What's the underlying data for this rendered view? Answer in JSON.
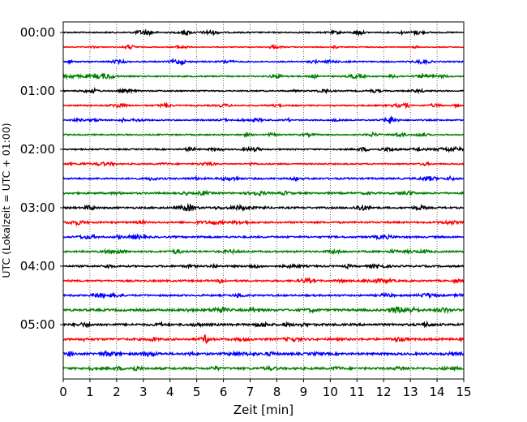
{
  "chart_data": {
    "type": "line",
    "title": "",
    "xlabel": "Zeit  [min]",
    "ylabel": "UTC (Lokalzeit = UTC + 01:00)",
    "xlim": [
      0,
      15
    ],
    "x_ticks": [
      0,
      1,
      2,
      3,
      4,
      5,
      6,
      7,
      8,
      9,
      10,
      11,
      12,
      13,
      14,
      15
    ],
    "x_tick_labels": [
      "0",
      "1",
      "2",
      "3",
      "4",
      "5",
      "6",
      "7",
      "8",
      "9",
      "10",
      "11",
      "12",
      "13",
      "14",
      "15"
    ],
    "y_tick_labels": [
      "00:00",
      "01:00",
      "02:00",
      "03:00",
      "04:00",
      "05:00"
    ],
    "trace_interval_min": 15,
    "trace_count": 24,
    "trace_colors": [
      "#000000",
      "#ff0000",
      "#0000ff",
      "#008000"
    ],
    "vertical_grid": "dotted",
    "traces": [
      {
        "start": "00:00",
        "color": "#000000",
        "amplitude": 3
      },
      {
        "start": "00:15",
        "color": "#ff0000",
        "amplitude": 2
      },
      {
        "start": "00:30",
        "color": "#0000ff",
        "amplitude": 3
      },
      {
        "start": "00:45",
        "color": "#008000",
        "amplitude": 3
      },
      {
        "start": "01:00",
        "color": "#000000",
        "amplitude": 3
      },
      {
        "start": "01:15",
        "color": "#ff0000",
        "amplitude": 3
      },
      {
        "start": "01:30",
        "color": "#0000ff",
        "amplitude": 3
      },
      {
        "start": "01:45",
        "color": "#008000",
        "amplitude": 3
      },
      {
        "start": "02:00",
        "color": "#000000",
        "amplitude": 3
      },
      {
        "start": "02:15",
        "color": "#ff0000",
        "amplitude": 3
      },
      {
        "start": "02:30",
        "color": "#0000ff",
        "amplitude": 4
      },
      {
        "start": "02:45",
        "color": "#008000",
        "amplitude": 4
      },
      {
        "start": "03:00",
        "color": "#000000",
        "amplitude": 4
      },
      {
        "start": "03:15",
        "color": "#ff0000",
        "amplitude": 4
      },
      {
        "start": "03:30",
        "color": "#0000ff",
        "amplitude": 4
      },
      {
        "start": "03:45",
        "color": "#008000",
        "amplitude": 4
      },
      {
        "start": "04:00",
        "color": "#000000",
        "amplitude": 4
      },
      {
        "start": "04:15",
        "color": "#ff0000",
        "amplitude": 4
      },
      {
        "start": "04:30",
        "color": "#0000ff",
        "amplitude": 4
      },
      {
        "start": "04:45",
        "color": "#008000",
        "amplitude": 5
      },
      {
        "start": "05:00",
        "color": "#000000",
        "amplitude": 5
      },
      {
        "start": "05:15",
        "color": "#ff0000",
        "amplitude": 5
      },
      {
        "start": "05:30",
        "color": "#0000ff",
        "amplitude": 5
      },
      {
        "start": "05:45",
        "color": "#008000",
        "amplitude": 5
      }
    ]
  }
}
